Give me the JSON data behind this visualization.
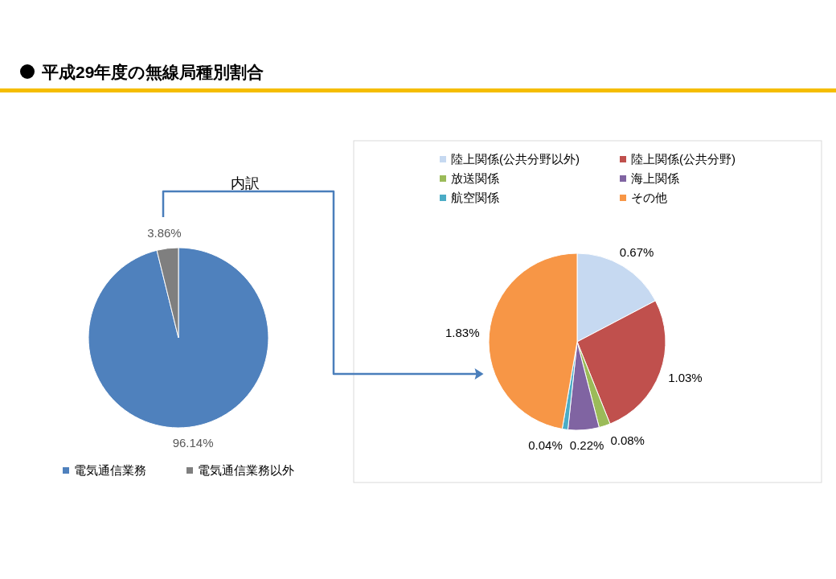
{
  "chart_data": [
    {
      "type": "pie",
      "title": "平成29年度の無線局種別割合",
      "annotations": [
        "内訳"
      ],
      "categories": [
        "電気通信業務",
        "電気通信業務以外"
      ],
      "values": [
        96.14,
        3.86
      ],
      "colors": [
        "#4f81bd",
        "#7f7f7f"
      ],
      "value_labels": [
        "96.14%",
        "3.86%"
      ],
      "legend": "bottom"
    },
    {
      "type": "pie",
      "categories": [
        "陸上関係(公共分野以外)",
        "陸上関係(公共分野)",
        "放送関係",
        "海上関係",
        "航空関係",
        "その他"
      ],
      "values": [
        0.67,
        1.03,
        0.08,
        0.22,
        0.04,
        1.83
      ],
      "colors": [
        "#c6d9f1",
        "#c0504d",
        "#9bbb59",
        "#8064a2",
        "#4bacc6",
        "#f79646"
      ],
      "value_labels": [
        "0.67%",
        "1.03%",
        "0.08%",
        "0.22%",
        "0.04%",
        "1.83%"
      ],
      "legend": "top"
    }
  ]
}
